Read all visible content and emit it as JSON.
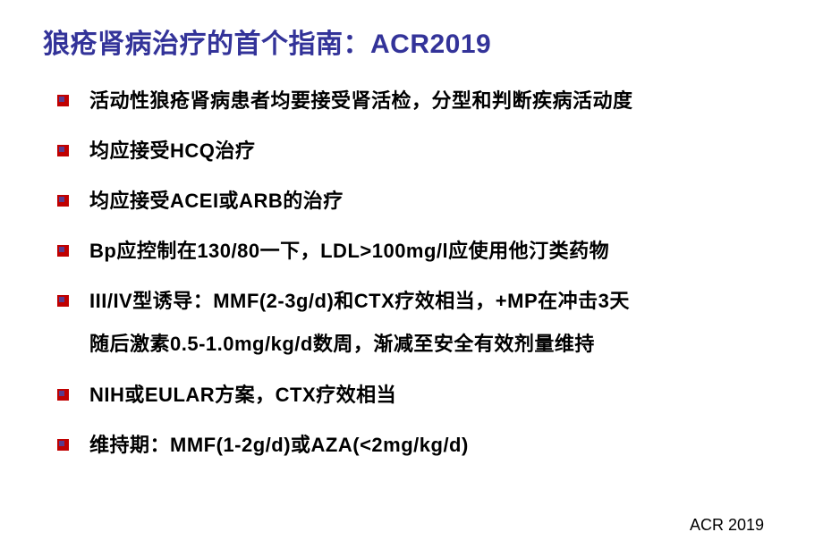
{
  "title": "狼疮肾病治疗的首个指南：ACR2019",
  "bullets": [
    {
      "text": "活动性狼疮肾病患者均要接受肾活检，分型和判断疾病活动度",
      "cont": null
    },
    {
      "text": "均应接受HCQ治疗",
      "cont": null
    },
    {
      "text": "均应接受ACEI或ARB的治疗",
      "cont": null
    },
    {
      "text": "Bp应控制在130/80一下，LDL>100mg/l应使用他汀类药物",
      "cont": null
    },
    {
      "text": " III/IV型诱导：MMF(2-3g/d)和CTX疗效相当，+MP在冲击3天",
      "cont": "随后激素0.5-1.0mg/kg/d数周，渐减至安全有效剂量维持"
    },
    {
      "text": "NIH或EULAR方案，CTX疗效相当",
      "cont": null
    },
    {
      "text": "维持期：MMF(1-2g/d)或AZA(<2mg/kg/d)",
      "cont": null
    }
  ],
  "footer": "ACR 2019",
  "style": {
    "title_color": "#333399",
    "title_fontsize": 30,
    "body_fontsize": 22,
    "body_color": "#000000",
    "bullet_outer_color": "#c00000",
    "bullet_inner_color": "#5a3c8c",
    "background_color": "#ffffff",
    "footer_fontsize": 18
  }
}
